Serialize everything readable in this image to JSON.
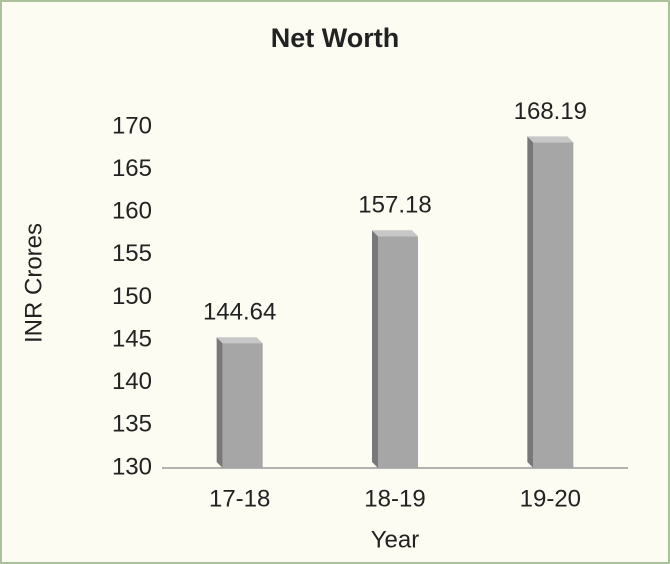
{
  "chart_data": {
    "type": "bar3d",
    "title": "Net Worth",
    "x_label": "Year",
    "y_label": "INR Crores",
    "categories": [
      "17-18",
      "18-19",
      "19-20"
    ],
    "values": [
      144.64,
      157.18,
      168.19
    ],
    "color": "#a6a6a6",
    "ylim": [
      130,
      170
    ],
    "yticks": [
      130,
      135,
      140,
      145,
      150,
      155,
      160,
      165,
      170
    ],
    "grid": false
  }
}
